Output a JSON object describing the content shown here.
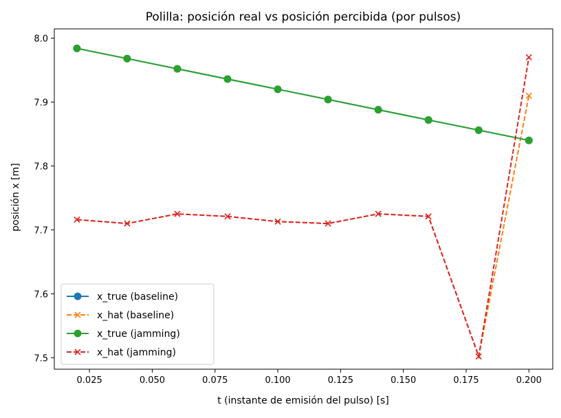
{
  "chart_data": {
    "type": "line",
    "title": "Polilla: posición real vs posición percibida (por pulsos)",
    "xlabel": "t (instante de emisión del pulso) [s]",
    "ylabel": "posición x [m]",
    "xlim": [
      0.011,
      0.2095
    ],
    "ylim": [
      7.482,
      8.0145
    ],
    "x": [
      0.02,
      0.04,
      0.06,
      0.08,
      0.1,
      0.12,
      0.14,
      0.16,
      0.18,
      0.2
    ],
    "xticks": [
      0.025,
      0.05,
      0.075,
      0.1,
      0.125,
      0.15,
      0.175,
      0.2
    ],
    "xtick_labels": [
      "0.025",
      "0.050",
      "0.075",
      "0.100",
      "0.125",
      "0.150",
      "0.175",
      "0.200"
    ],
    "yticks": [
      7.5,
      7.6,
      7.7,
      7.8,
      7.9,
      8.0
    ],
    "ytick_labels": [
      "7.5",
      "7.6",
      "7.7",
      "7.8",
      "7.9",
      "8.0"
    ],
    "grid": false,
    "legend_position": "lower-left",
    "series": [
      {
        "name": "x_true (baseline)",
        "color": "#1f77b4",
        "linestyle": "solid",
        "marker": "circle",
        "values": [
          7.984,
          7.968,
          7.952,
          7.936,
          7.92,
          7.904,
          7.888,
          7.872,
          7.856,
          7.84
        ]
      },
      {
        "name": "x_hat (baseline)",
        "color": "#ff7f0e",
        "linestyle": "dashed",
        "marker": "x",
        "values": [
          7.716,
          7.71,
          7.725,
          7.721,
          7.713,
          7.71,
          7.725,
          7.721,
          7.502,
          7.91
        ]
      },
      {
        "name": "x_true (jamming)",
        "color": "#2ca02c",
        "linestyle": "solid",
        "marker": "circle",
        "values": [
          7.984,
          7.968,
          7.952,
          7.936,
          7.92,
          7.904,
          7.888,
          7.872,
          7.856,
          7.84
        ]
      },
      {
        "name": "x_hat (jamming)",
        "color": "#d62728",
        "linestyle": "dashed",
        "marker": "x",
        "values": [
          7.716,
          7.71,
          7.725,
          7.721,
          7.713,
          7.71,
          7.725,
          7.721,
          7.502,
          7.97
        ]
      }
    ]
  }
}
